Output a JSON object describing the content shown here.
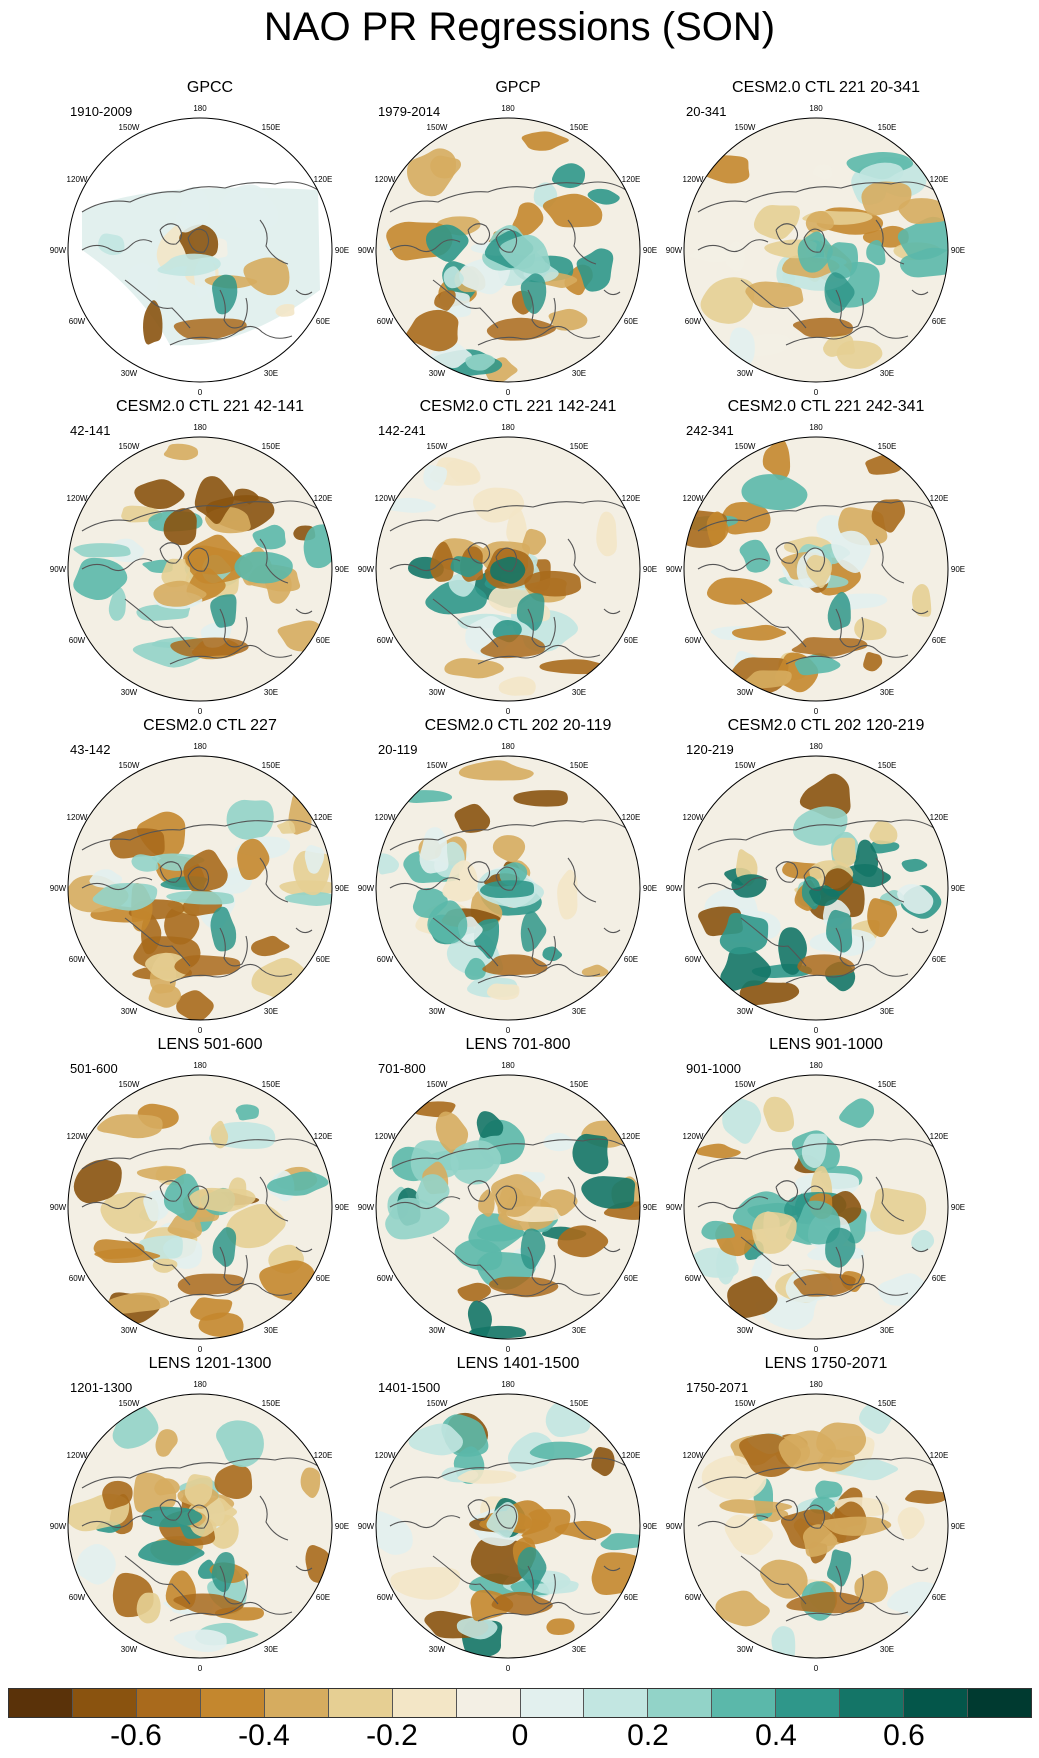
{
  "title": "NAO PR Regressions (SON)",
  "panels": [
    {
      "title": "GPCC",
      "period": "1910-2009",
      "palette": [
        1,
        4,
        7,
        8,
        9,
        6
      ],
      "masked": true
    },
    {
      "title": "GPCP",
      "period": "1979-2014",
      "palette": [
        2,
        4,
        8,
        9,
        10,
        12,
        3
      ],
      "masked": false
    },
    {
      "title": "CESM2.0 CTL 221 20-341",
      "period": "20-341",
      "palette": [
        3,
        5,
        7,
        8,
        9,
        11,
        4
      ],
      "masked": false
    },
    {
      "title": "CESM2.0 CTL 221 42-141",
      "period": "42-141",
      "palette": [
        1,
        3,
        5,
        8,
        10,
        11,
        4
      ],
      "masked": false
    },
    {
      "title": "CESM2.0 CTL 221 142-241",
      "period": "142-241",
      "palette": [
        2,
        4,
        6,
        8,
        9,
        12,
        13
      ],
      "masked": false
    },
    {
      "title": "CESM2.0 CTL 221 242-341",
      "period": "242-341",
      "palette": [
        2,
        4,
        5,
        8,
        10,
        11,
        3
      ],
      "masked": false
    },
    {
      "title": "CESM2.0 CTL 227",
      "period": "43-142",
      "palette": [
        2,
        3,
        5,
        8,
        10,
        12,
        4
      ],
      "masked": false
    },
    {
      "title": "CESM2.0 CTL 202 20-119",
      "period": "20-119",
      "palette": [
        1,
        4,
        6,
        8,
        9,
        11,
        12
      ],
      "masked": false
    },
    {
      "title": "CESM2.0 CTL 202 120-219",
      "period": "120-219",
      "palette": [
        1,
        3,
        5,
        8,
        10,
        12,
        13
      ],
      "masked": false
    },
    {
      "title": "LENS 501-600",
      "period": "501-600",
      "palette": [
        1,
        3,
        5,
        8,
        9,
        11,
        4
      ],
      "masked": false
    },
    {
      "title": "LENS 701-800",
      "period": "701-800",
      "palette": [
        2,
        4,
        6,
        8,
        10,
        11,
        13
      ],
      "masked": false
    },
    {
      "title": "LENS 901-1000",
      "period": "901-1000",
      "palette": [
        1,
        3,
        5,
        8,
        9,
        11,
        12
      ],
      "masked": false
    },
    {
      "title": "LENS 1201-1300",
      "period": "1201-1300",
      "palette": [
        2,
        4,
        5,
        8,
        10,
        12,
        3
      ],
      "masked": false
    },
    {
      "title": "LENS 1401-1500",
      "period": "1401-1500",
      "palette": [
        1,
        3,
        6,
        8,
        9,
        11,
        13
      ],
      "masked": false
    },
    {
      "title": "LENS 1750-2071",
      "period": "1750-2071",
      "palette": [
        2,
        4,
        6,
        8,
        9,
        11,
        4
      ],
      "masked": false
    }
  ],
  "longitude_labels": {
    "lon_180": "180",
    "lon_150e": "150E",
    "lon_120e": "120E",
    "lon_90e": "90E",
    "lon_60e": "60E",
    "lon_30e": "30E",
    "lon_0": "0",
    "lon_30w": "30W",
    "lon_60w": "60W",
    "lon_90w": "90W",
    "lon_120w": "120W",
    "lon_150w": "150W"
  },
  "colorbar": {
    "colors": [
      "#5a3209",
      "#8a530f",
      "#a96a1c",
      "#c4872e",
      "#d6ac5f",
      "#e6cf93",
      "#f3e6c6",
      "#f3efe4",
      "#e2f0ee",
      "#c2e6e1",
      "#92d3c8",
      "#5bb8aa",
      "#2f978a",
      "#147567",
      "#04564a",
      "#003a30"
    ],
    "tick_labels": [
      "-0.6",
      "-0.4",
      "-0.2",
      "0",
      "0.2",
      "0.4",
      "0.6"
    ]
  }
}
